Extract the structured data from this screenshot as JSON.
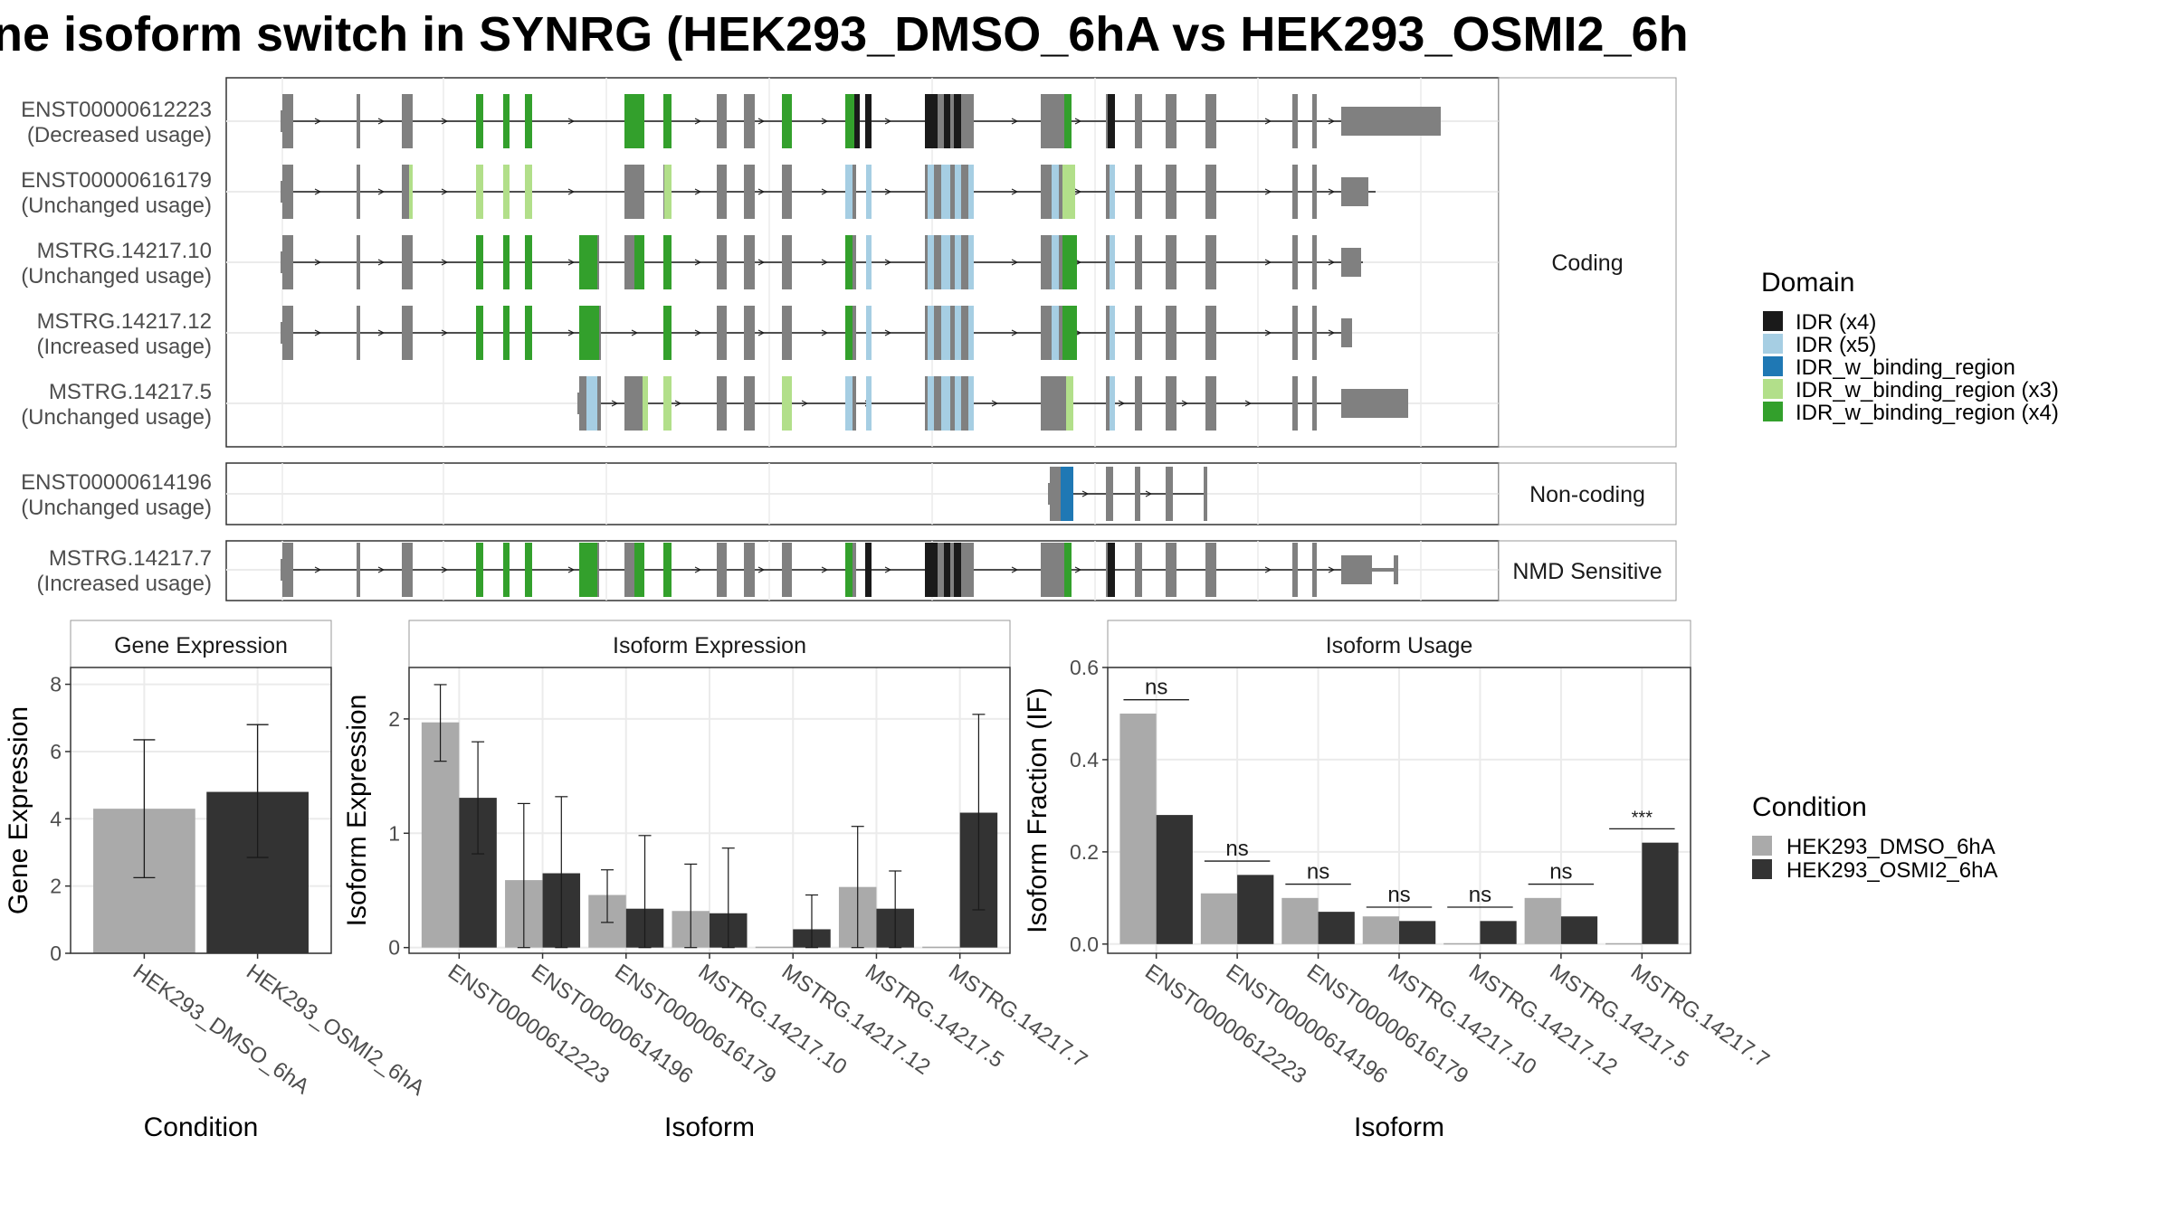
{
  "title": "ne isoform switch in SYNRG (HEK293_DMSO_6hA vs HEK293_OSMI2_6h",
  "colors": {
    "exon": "#808080",
    "IDR": "#1a1a1a",
    "IDR_light": "#a6cee3",
    "IDR_w_binding_region": "#1f78b4",
    "IDR_w_binding_region_x3": "#b2df8a",
    "IDR_w_binding_region_x4": "#33a02c",
    "cond1": "#aaaaaa",
    "cond2": "#333333"
  },
  "structure": {
    "coding_label": "Coding",
    "noncoding_label": "Non-coding",
    "nmd_label": "NMD Sensitive",
    "isoforms": [
      {
        "id": "ENST00000612223",
        "usage": "(Decreased usage)",
        "group": "Coding"
      },
      {
        "id": "ENST00000616179",
        "usage": "(Unchanged usage)",
        "group": "Coding"
      },
      {
        "id": "MSTRG.14217.10",
        "usage": "(Unchanged usage)",
        "group": "Coding"
      },
      {
        "id": "MSTRG.14217.12",
        "usage": "(Increased usage)",
        "group": "Coding"
      },
      {
        "id": "MSTRG.14217.5",
        "usage": "(Unchanged usage)",
        "group": "Coding"
      },
      {
        "id": "ENST00000614196",
        "usage": "(Unchanged usage)",
        "group": "Non-coding"
      },
      {
        "id": "MSTRG.14217.7",
        "usage": "(Increased usage)",
        "group": "NMD Sensitive"
      }
    ]
  },
  "domain_legend": {
    "title": "Domain",
    "items": [
      {
        "label": "IDR (x4)",
        "color": "#1a1a1a"
      },
      {
        "label": "IDR (x5)",
        "color": "#a6cee3"
      },
      {
        "label": "IDR_w_binding_region",
        "color": "#1f78b4"
      },
      {
        "label": "IDR_w_binding_region (x3)",
        "color": "#b2df8a"
      },
      {
        "label": "IDR_w_binding_region (x4)",
        "color": "#33a02c"
      }
    ]
  },
  "condition_legend": {
    "title": "Condition",
    "items": [
      {
        "label": "HEK293_DMSO_6hA",
        "color": "#aaaaaa"
      },
      {
        "label": "HEK293_OSMI2_6hA",
        "color": "#333333"
      }
    ]
  },
  "chart_data": [
    {
      "type": "bar",
      "title": "Gene Expression",
      "xlabel": "Condition",
      "ylabel": "Gene Expression",
      "ylim": [
        0,
        8.5
      ],
      "yticks": [
        "0",
        "2",
        "4",
        "6",
        "8"
      ],
      "categories": [
        "HEK293_DMSO_6hA",
        "HEK293_OSMI2_6hA"
      ],
      "values": [
        4.3,
        4.8
      ],
      "errors": [
        [
          2.25,
          6.35
        ],
        [
          2.85,
          6.8
        ]
      ]
    },
    {
      "type": "bar",
      "title": "Isoform Expression",
      "xlabel": "Isoform",
      "ylabel": "Isoform Expression",
      "ylim": [
        -0.05,
        2.45
      ],
      "yticks": [
        "0",
        "1",
        "2"
      ],
      "categories": [
        "ENST00000612223",
        "ENST00000614196",
        "ENST00000616179",
        "MSTRG.14217.10",
        "MSTRG.14217.12",
        "MSTRG.14217.5",
        "MSTRG.14217.7"
      ],
      "series": [
        {
          "name": "HEK293_DMSO_6hA",
          "values": [
            1.97,
            0.59,
            0.46,
            0.32,
            0.0,
            0.53,
            0.0
          ],
          "errors": [
            [
              1.63,
              2.3
            ],
            [
              0.0,
              1.26
            ],
            [
              0.22,
              0.68
            ],
            [
              0.0,
              0.73
            ],
            [
              0.0,
              0.0
            ],
            [
              0.0,
              1.06
            ],
            [
              0.0,
              0.0
            ]
          ]
        },
        {
          "name": "HEK293_OSMI2_6hA",
          "values": [
            1.31,
            0.65,
            0.34,
            0.3,
            0.16,
            0.34,
            1.18
          ],
          "errors": [
            [
              0.82,
              1.8
            ],
            [
              0.0,
              1.32
            ],
            [
              0.0,
              0.98
            ],
            [
              0.0,
              0.87
            ],
            [
              0.0,
              0.46
            ],
            [
              0.0,
              0.67
            ],
            [
              0.33,
              2.04
            ]
          ]
        }
      ]
    },
    {
      "type": "bar",
      "title": "Isoform Usage",
      "xlabel": "Isoform",
      "ylabel": "Isoform Fraction (IF)",
      "ylim": [
        -0.02,
        0.6
      ],
      "yticks": [
        "0.0",
        "0.2",
        "0.4",
        "0.6"
      ],
      "categories": [
        "ENST00000612223",
        "ENST00000614196",
        "ENST00000616179",
        "MSTRG.14217.10",
        "MSTRG.14217.12",
        "MSTRG.14217.5",
        "MSTRG.14217.7"
      ],
      "series": [
        {
          "name": "HEK293_DMSO_6hA",
          "values": [
            0.5,
            0.11,
            0.1,
            0.06,
            0.0,
            0.1,
            0.0
          ]
        },
        {
          "name": "HEK293_OSMI2_6hA",
          "values": [
            0.28,
            0.15,
            0.07,
            0.05,
            0.05,
            0.06,
            0.22
          ]
        }
      ],
      "significance": [
        "ns",
        "ns",
        "ns",
        "ns",
        "ns",
        "ns",
        "***"
      ],
      "significance_y": [
        0.53,
        0.18,
        0.13,
        0.08,
        0.08,
        0.13,
        0.25
      ]
    }
  ]
}
